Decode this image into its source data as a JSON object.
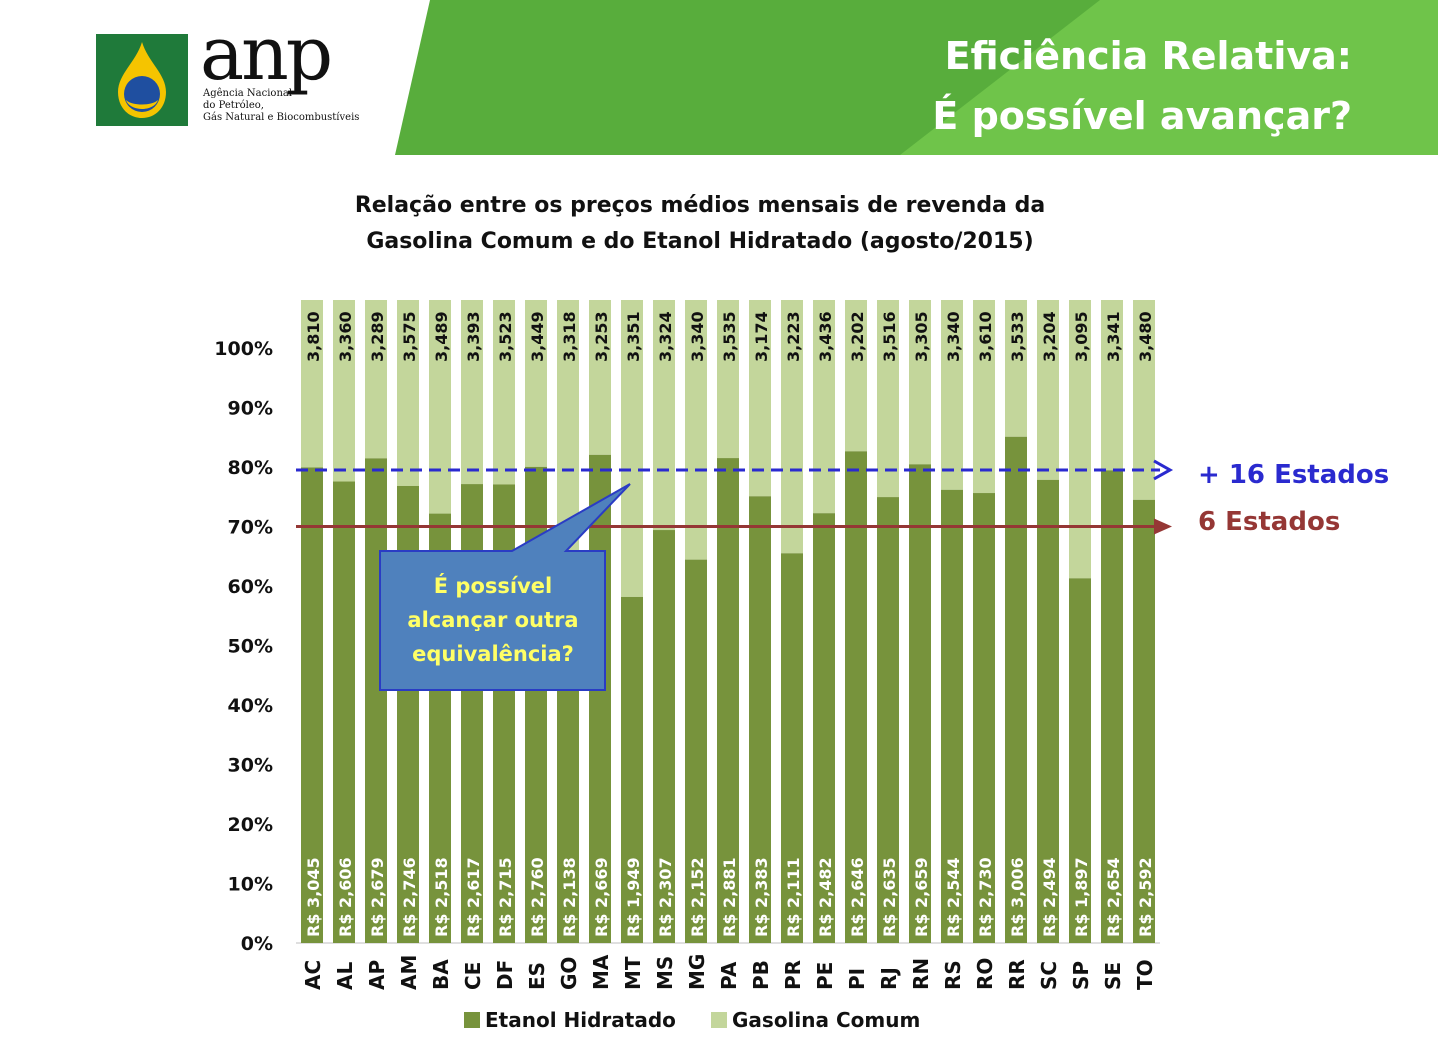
{
  "header": {
    "logo_text": "anp",
    "logo_subtitle": [
      "Agência Nacional",
      "do Petróleo,",
      "Gás Natural e Biocombustíveis"
    ],
    "title_line1": "Eficiência Relativa:",
    "title_line2": "É possível avançar?",
    "colors": {
      "green_dark": "#3d8d2a",
      "green_light": "#6fc44a",
      "white": "#ffffff"
    }
  },
  "chart_data": {
    "type": "bar",
    "subtype": "stacked-100",
    "title": "Relação entre os preços médios mensais de revenda da Gasolina Comum e do Etanol Hidratado (agosto/2015)",
    "title_lines": [
      "Relação entre os preços médios mensais de revenda da",
      "Gasolina Comum e do Etanol Hidratado (agosto/2015)"
    ],
    "categories": [
      "AC",
      "AL",
      "AP",
      "AM",
      "BA",
      "CE",
      "DF",
      "ES",
      "GO",
      "MA",
      "MT",
      "MS",
      "MG",
      "PA",
      "PB",
      "PR",
      "PE",
      "PI",
      "RJ",
      "RN",
      "RS",
      "RO",
      "RR",
      "SC",
      "SP",
      "SE",
      "TO"
    ],
    "series": [
      {
        "name": "Etanol Hidratado",
        "color": "#77933c",
        "labels": [
          "R$ 3,045",
          "R$ 2,606",
          "R$ 2,679",
          "R$ 2,746",
          "R$ 2,518",
          "R$ 2,617",
          "R$ 2,715",
          "R$ 2,760",
          "R$ 2,138",
          "R$ 2,669",
          "R$ 1,949",
          "R$ 2,307",
          "R$ 2,152",
          "R$ 2,881",
          "R$ 2,383",
          "R$ 2,111",
          "R$ 2,482",
          "R$ 2,646",
          "R$ 2,635",
          "R$ 2,659",
          "R$ 2,544",
          "R$ 2,730",
          "R$ 3,006",
          "R$ 2,494",
          "R$ 1,897",
          "R$ 2,654",
          "R$ 2,592"
        ],
        "values": [
          3.045,
          2.606,
          2.679,
          2.746,
          2.518,
          2.617,
          2.715,
          2.76,
          2.138,
          2.669,
          1.949,
          2.307,
          2.152,
          2.881,
          2.383,
          2.111,
          2.482,
          2.646,
          2.635,
          2.659,
          2.544,
          2.73,
          3.006,
          2.494,
          1.897,
          2.654,
          2.592
        ]
      },
      {
        "name": "Gasolina Comum",
        "color": "#c3d69b",
        "labels": [
          "3,810",
          "3,360",
          "3,289",
          "3,575",
          "3,489",
          "3,393",
          "3,523",
          "3,449",
          "3,318",
          "3,253",
          "3,351",
          "3,324",
          "3,340",
          "3,535",
          "3,174",
          "3,223",
          "3,436",
          "3,202",
          "3,516",
          "3,305",
          "3,340",
          "3,610",
          "3,533",
          "3,204",
          "3,095",
          "3,341",
          "3,480"
        ],
        "values": [
          3.81,
          3.36,
          3.289,
          3.575,
          3.489,
          3.393,
          3.523,
          3.449,
          3.318,
          3.253,
          3.351,
          3.324,
          3.34,
          3.535,
          3.174,
          3.223,
          3.436,
          3.202,
          3.516,
          3.305,
          3.34,
          3.61,
          3.533,
          3.204,
          3.095,
          3.341,
          3.48
        ]
      }
    ],
    "yticks": [
      "0%",
      "10%",
      "20%",
      "30%",
      "40%",
      "50%",
      "60%",
      "70%",
      "80%",
      "90%",
      "100%"
    ],
    "ylim": [
      0,
      100
    ],
    "legend_position": "bottom",
    "legend": [
      "Etanol Hidratado",
      "Gasolina Comum"
    ],
    "reference_lines": [
      {
        "value": 79.5,
        "label": "+ 16 Estados",
        "color": "#2a2acf",
        "style": "dashed"
      },
      {
        "value": 70,
        "label": "6 Estados",
        "color": "#953735",
        "style": "solid"
      }
    ],
    "callout": {
      "lines": [
        "É possível",
        "alcançar  outra",
        "equivalência?"
      ],
      "fill": "#4f81bd",
      "border": "#2a3cc4",
      "text_color": "#ffff66"
    }
  }
}
